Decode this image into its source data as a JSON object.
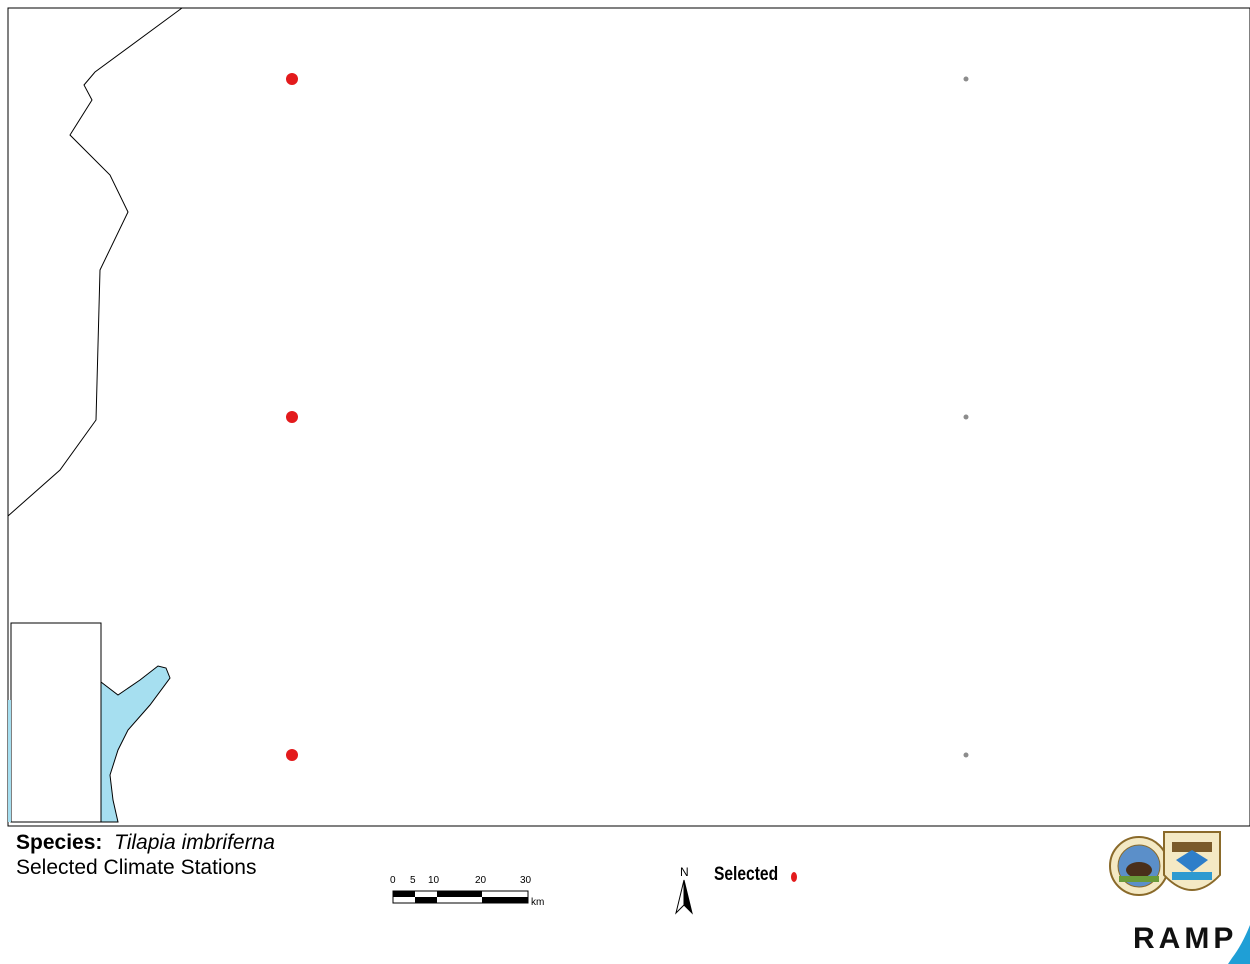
{
  "title": {
    "species_label": "Species:",
    "species_name": "Tilapia imbriferna",
    "subtitle": "Selected Climate Stations"
  },
  "scale_bar": {
    "ticks": [
      "0",
      "5",
      "10",
      "20",
      "30"
    ],
    "unit": "km"
  },
  "north_arrow": {
    "label": "N"
  },
  "legend": {
    "items": [
      {
        "label": "Selected",
        "symbol": "red-dot"
      }
    ]
  },
  "logos": {
    "ramp_text": "RAMP"
  },
  "map": {
    "colors": {
      "selected_station": "#e31a1c",
      "other_station": "#8c8c8c",
      "water": "#a6dff0",
      "boundary": "#000000"
    },
    "stations": [
      {
        "status": "selected"
      },
      {
        "status": "selected"
      },
      {
        "status": "selected"
      },
      {
        "status": "unselected"
      },
      {
        "status": "unselected"
      },
      {
        "status": "unselected"
      }
    ]
  }
}
